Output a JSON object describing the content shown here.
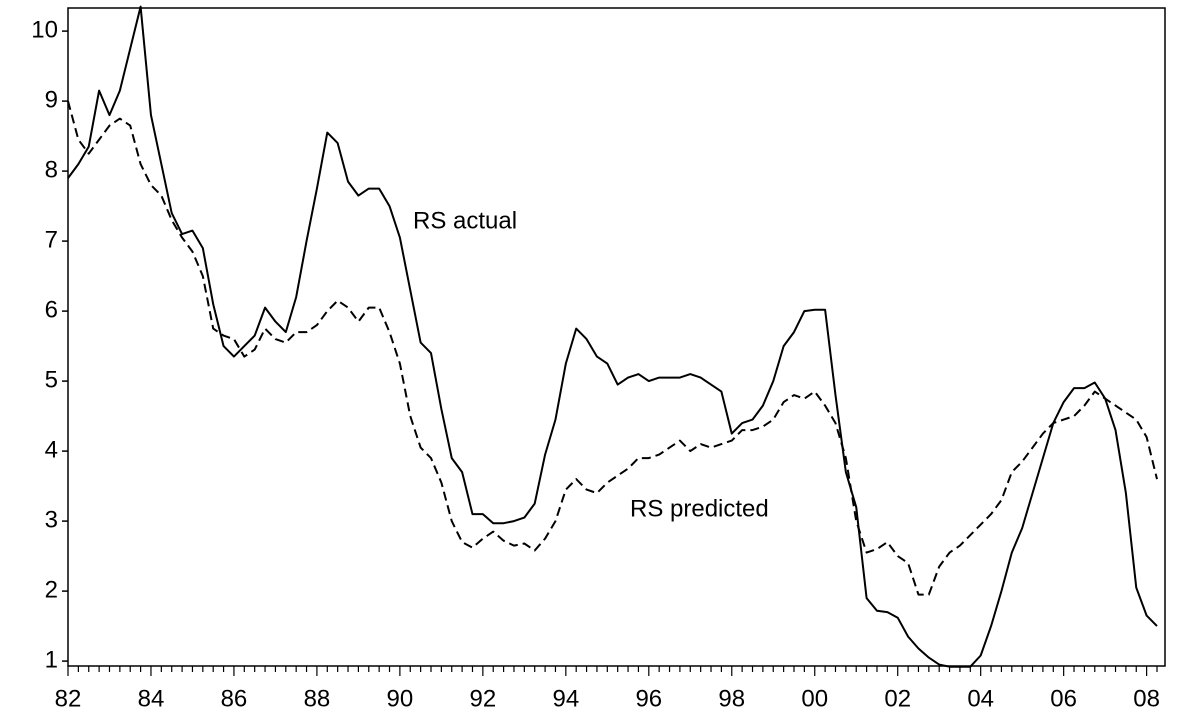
{
  "chart_data": {
    "type": "line",
    "categories": [
      "82",
      null,
      null,
      null,
      null,
      null,
      null,
      null,
      "84",
      null,
      null,
      null,
      null,
      null,
      null,
      null,
      "86",
      null,
      null,
      null,
      null,
      null,
      null,
      null,
      "88",
      null,
      null,
      null,
      null,
      null,
      null,
      null,
      "90",
      null,
      null,
      null,
      null,
      null,
      null,
      null,
      "92",
      null,
      null,
      null,
      null,
      null,
      null,
      null,
      "94",
      null,
      null,
      null,
      null,
      null,
      null,
      null,
      "96",
      null,
      null,
      null,
      null,
      null,
      null,
      null,
      "98",
      null,
      null,
      null,
      null,
      null,
      null,
      null,
      "00",
      null,
      null,
      null,
      null,
      null,
      null,
      null,
      "02",
      null,
      null,
      null,
      null,
      null,
      null,
      null,
      "04",
      null,
      null,
      null,
      null,
      null,
      null,
      null,
      "06",
      null,
      null,
      null,
      null,
      null,
      null,
      null,
      "08",
      null
    ],
    "series": [
      {
        "name": "RS actual",
        "color": "#000000",
        "dash": false,
        "values": [
          7.9,
          8.1,
          8.35,
          9.15,
          8.8,
          9.15,
          9.75,
          10.35,
          8.8,
          8.1,
          7.4,
          7.1,
          7.15,
          6.9,
          6.1,
          5.5,
          5.35,
          5.5,
          5.65,
          6.05,
          5.85,
          5.7,
          6.2,
          7.0,
          7.75,
          8.55,
          8.4,
          7.85,
          7.65,
          7.75,
          7.75,
          7.5,
          7.05,
          6.3,
          5.55,
          5.4,
          4.6,
          3.9,
          3.7,
          3.1,
          3.1,
          2.97,
          2.97,
          3.0,
          3.05,
          3.25,
          3.95,
          4.45,
          5.25,
          5.75,
          5.6,
          5.35,
          5.25,
          4.95,
          5.05,
          5.1,
          5.0,
          5.05,
          5.05,
          5.05,
          5.1,
          5.05,
          4.95,
          4.85,
          4.25,
          4.4,
          4.45,
          4.65,
          5.0,
          5.5,
          5.7,
          6.0,
          6.02,
          6.02,
          4.8,
          3.7,
          3.2,
          1.9,
          1.72,
          1.7,
          1.62,
          1.35,
          1.18,
          1.05,
          0.95,
          0.92,
          0.92,
          0.92,
          1.08,
          1.5,
          2.0,
          2.55,
          2.9,
          3.4,
          3.9,
          4.4,
          4.7,
          4.9,
          4.9,
          4.98,
          4.75,
          4.3,
          3.4,
          2.05,
          1.65,
          1.5
        ]
      },
      {
        "name": "RS predicted",
        "color": "#000000",
        "dash": true,
        "values": [
          9.0,
          8.45,
          8.25,
          8.45,
          8.65,
          8.75,
          8.65,
          8.1,
          7.8,
          7.65,
          7.3,
          7.05,
          6.85,
          6.5,
          5.75,
          5.65,
          5.6,
          5.35,
          5.45,
          5.75,
          5.6,
          5.55,
          5.7,
          5.7,
          5.8,
          6.0,
          6.15,
          6.05,
          5.85,
          6.05,
          6.05,
          5.7,
          5.25,
          4.5,
          4.05,
          3.9,
          3.55,
          3.0,
          2.7,
          2.62,
          2.75,
          2.85,
          2.72,
          2.65,
          2.68,
          2.58,
          2.75,
          3.0,
          3.45,
          3.6,
          3.45,
          3.4,
          3.55,
          3.65,
          3.75,
          3.9,
          3.9,
          3.95,
          4.05,
          4.15,
          4.0,
          4.1,
          4.05,
          4.1,
          4.15,
          4.3,
          4.3,
          4.35,
          4.45,
          4.7,
          4.8,
          4.75,
          4.85,
          4.65,
          4.4,
          3.9,
          3.0,
          2.55,
          2.6,
          2.7,
          2.5,
          2.4,
          1.95,
          1.95,
          2.35,
          2.55,
          2.65,
          2.8,
          2.95,
          3.1,
          3.3,
          3.7,
          3.85,
          4.05,
          4.25,
          4.4,
          4.45,
          4.5,
          4.65,
          4.85,
          4.75,
          4.65,
          4.55,
          4.45,
          4.2,
          3.6
        ]
      }
    ],
    "ylim": [
      0.93,
      10.33
    ],
    "yticks": [
      1,
      2,
      3,
      4,
      5,
      6,
      7,
      8,
      9,
      10
    ],
    "grid": false
  }
}
